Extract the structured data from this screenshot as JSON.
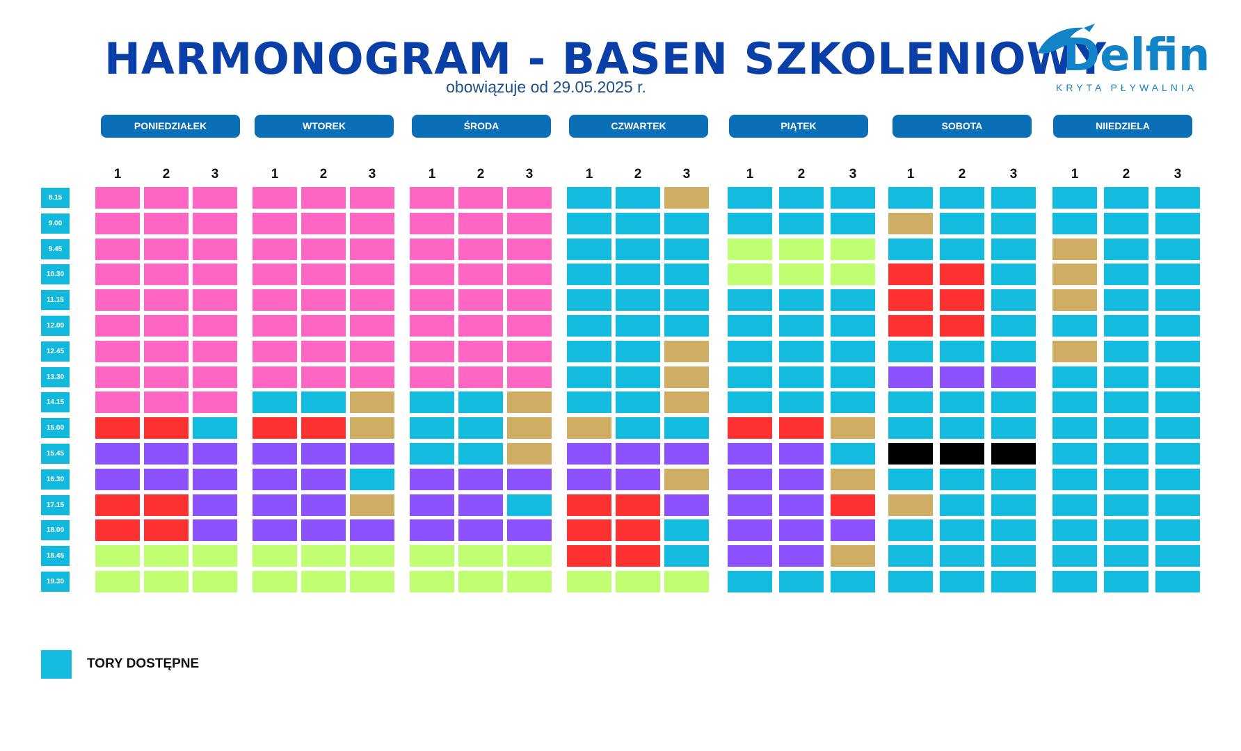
{
  "header": {
    "title": "HARMONOGRAM - BASEN SZKOLENIOWY",
    "subtitle": "obowiązuje od 29.05.2025 r."
  },
  "logo": {
    "word": "Delfin",
    "tagline": "KRYTA PŁYWALNIA"
  },
  "days": [
    "PONIEDZIAŁEK",
    "WTOREK",
    "ŚRODA",
    "CZWARTEK",
    "PIĄTEK",
    "SOBOTA",
    "NIIEDZIELA"
  ],
  "lanes": [
    "1",
    "2",
    "3"
  ],
  "times": [
    "8.15",
    "9.00",
    "9.45",
    "10.30",
    "11.15",
    "12.00",
    "12.45",
    "13.30",
    "14.15",
    "15.00",
    "15.45",
    "16.30",
    "17.15",
    "18.00",
    "18.45",
    "19.30"
  ],
  "colors": {
    "C": "#13bbde",
    "P": "#ff66c4",
    "G": "#cfae63",
    "R": "#ff3131",
    "V": "#8c52ff",
    "L": "#c1ff72",
    "K": "#000000"
  },
  "schedule": {
    "PONIEDZIAŁEK": [
      "PPP",
      "PPP",
      "PPP",
      "PPP",
      "PPP",
      "PPP",
      "PPP",
      "PPP",
      "PPP",
      "RRC",
      "VVV",
      "VVV",
      "RRV",
      "RRV",
      "LLL",
      "LLL"
    ],
    "WTOREK": [
      "PPP",
      "PPP",
      "PPP",
      "PPP",
      "PPP",
      "PPP",
      "PPP",
      "PPP",
      "CCG",
      "RRG",
      "VVV",
      "VVC",
      "VVG",
      "VVV",
      "LLL",
      "LLL"
    ],
    "ŚRODA": [
      "PPP",
      "PPP",
      "PPP",
      "PPP",
      "PPP",
      "PPP",
      "PPP",
      "PPP",
      "CCG",
      "CCG",
      "CCG",
      "VVV",
      "VVC",
      "VVV",
      "LLL",
      "LLL"
    ],
    "CZWARTEK": [
      "CCG",
      "CCC",
      "CCC",
      "CCC",
      "CCC",
      "CCC",
      "CCG",
      "CCG",
      "CCG",
      "GCC",
      "VVV",
      "VVG",
      "RRV",
      "RRC",
      "RRC",
      "LLL"
    ],
    "PIĄTEK": [
      "CCC",
      "CCC",
      "LLL",
      "LLL",
      "CCC",
      "CCC",
      "CCC",
      "CCC",
      "CCC",
      "RRG",
      "VVC",
      "VVG",
      "VVR",
      "VVV",
      "VVG",
      "CCC"
    ],
    "SOBOTA": [
      "CCC",
      "GCC",
      "CCC",
      "RRC",
      "RRC",
      "RRC",
      "CCC",
      "VVV",
      "CCC",
      "CCC",
      "KKK",
      "CCC",
      "GCC",
      "CCC",
      "CCC",
      "CCC"
    ],
    "NIIEDZIELA": [
      "CCC",
      "CCC",
      "GCC",
      "GCC",
      "GCC",
      "CCC",
      "GCC",
      "CCC",
      "CCC",
      "CCC",
      "CCC",
      "CCC",
      "CCC",
      "CCC",
      "CCC",
      "CCC"
    ]
  },
  "legend": {
    "label": "TORY DOSTĘPNE",
    "color": "#13bbde"
  }
}
